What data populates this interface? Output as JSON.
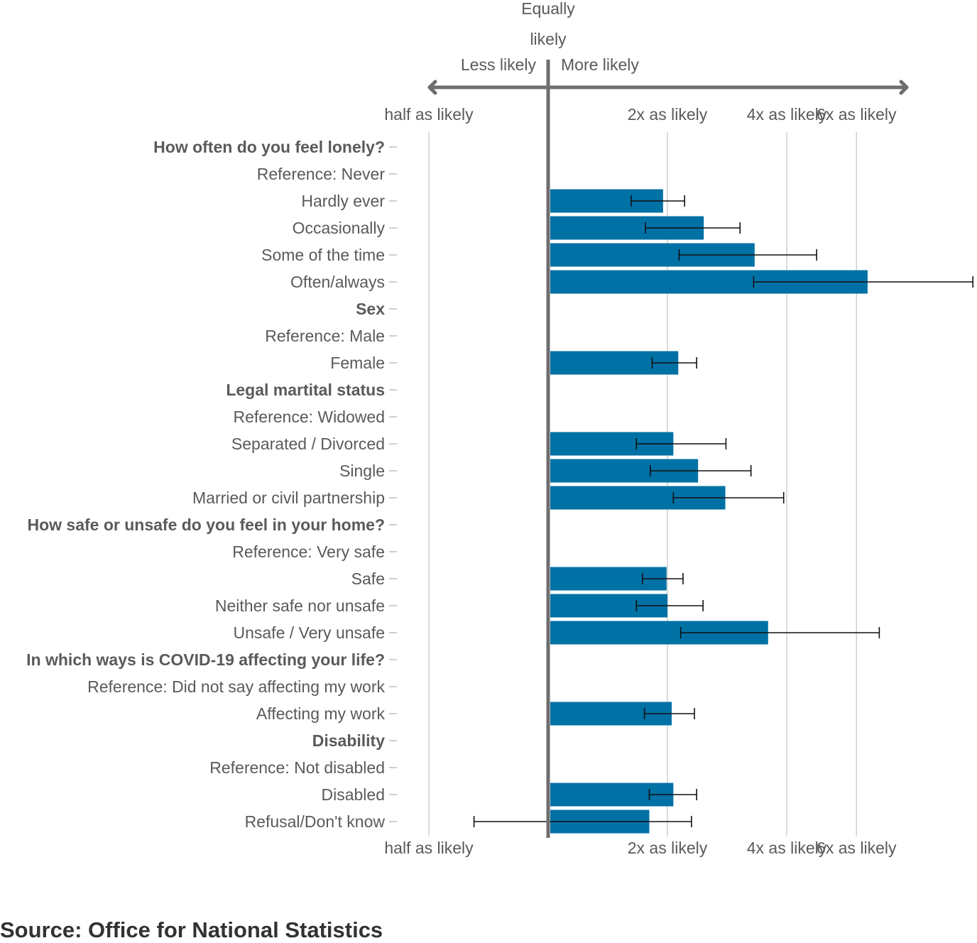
{
  "chart_data": {
    "type": "bar",
    "orientation": "horizontal",
    "scale": "log",
    "bar_color": "#0071a5",
    "header": {
      "center_line1": "Equally",
      "center_line2": "likely",
      "left_label": "Less likely",
      "right_label": "More likely"
    },
    "ticks": [
      {
        "value": 0.5,
        "label": "half as likely"
      },
      {
        "value": 2,
        "label": "2x as likely"
      },
      {
        "value": 4,
        "label": "4x as likely"
      },
      {
        "value": 6,
        "label": "6x as likely"
      }
    ],
    "rows": [
      {
        "label": "How often do you feel lonely?",
        "heading": true
      },
      {
        "label": "Reference: Never"
      },
      {
        "label": "Hardly ever",
        "value": 1.95,
        "low": 1.62,
        "high": 2.21
      },
      {
        "label": "Occasionally",
        "value": 2.47,
        "low": 1.76,
        "high": 3.05
      },
      {
        "label": "Some of the time",
        "value": 3.32,
        "low": 2.14,
        "high": 4.76
      },
      {
        "label": "Often/always",
        "value": 6.4,
        "low": 3.3,
        "high": 11.8
      },
      {
        "label": "Sex",
        "heading": true
      },
      {
        "label": "Reference: Male"
      },
      {
        "label": "Female",
        "value": 2.13,
        "low": 1.83,
        "high": 2.37
      },
      {
        "label": "Legal martital status",
        "heading": true
      },
      {
        "label": "Reference: Widowed"
      },
      {
        "label": "Separated / Divorced",
        "value": 2.07,
        "low": 1.67,
        "high": 2.81
      },
      {
        "label": "Single",
        "value": 2.39,
        "low": 1.81,
        "high": 3.25
      },
      {
        "label": "Married or civil partnership",
        "value": 2.8,
        "low": 2.07,
        "high": 3.93
      },
      {
        "label": "How safe or unsafe do you feel in your home?",
        "heading": true
      },
      {
        "label": "Reference: Very safe"
      },
      {
        "label": "Safe",
        "value": 1.99,
        "low": 1.73,
        "high": 2.19
      },
      {
        "label": "Neither safe nor unsafe",
        "value": 2.0,
        "low": 1.67,
        "high": 2.46
      },
      {
        "label": "Unsafe / Very unsafe",
        "value": 3.59,
        "low": 2.16,
        "high": 6.85
      },
      {
        "label": "In which ways is COVID-19 affecting your life?",
        "heading": true
      },
      {
        "label": "Reference: Did not say affecting my work"
      },
      {
        "label": "Affecting my work",
        "value": 2.05,
        "low": 1.75,
        "high": 2.34
      },
      {
        "label": "Disability",
        "heading": true
      },
      {
        "label": "Reference: Not disabled"
      },
      {
        "label": "Disabled",
        "value": 2.07,
        "low": 1.8,
        "high": 2.37
      },
      {
        "label": "Refusal/Don't know",
        "value": 1.8,
        "low": 0.65,
        "high": 2.3
      }
    ]
  },
  "source": "Source: Office for National Statistics"
}
